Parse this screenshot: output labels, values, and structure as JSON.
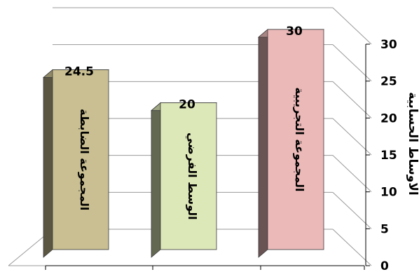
{
  "chart_data": {
    "type": "bar",
    "style": "3d-column",
    "orientation": "rtl",
    "categories": [
      "المجموعة الضابطة",
      "الوسط الفرضي",
      "المجموعة التجريبية"
    ],
    "values": [
      24.5,
      20,
      30
    ],
    "value_labels": [
      "24.5",
      "20",
      "30"
    ],
    "colors": [
      "#c9bf92",
      "#dde8b8",
      "#ebb9b8"
    ],
    "title": "",
    "xlabel": "",
    "ylabel": "الاوساط الحسابية",
    "ylim": [
      0,
      30
    ],
    "yticks": [
      "0",
      "5",
      "10",
      "15",
      "20",
      "25",
      "30"
    ],
    "yaxis_side": "right",
    "grid": true,
    "legend": "none"
  }
}
